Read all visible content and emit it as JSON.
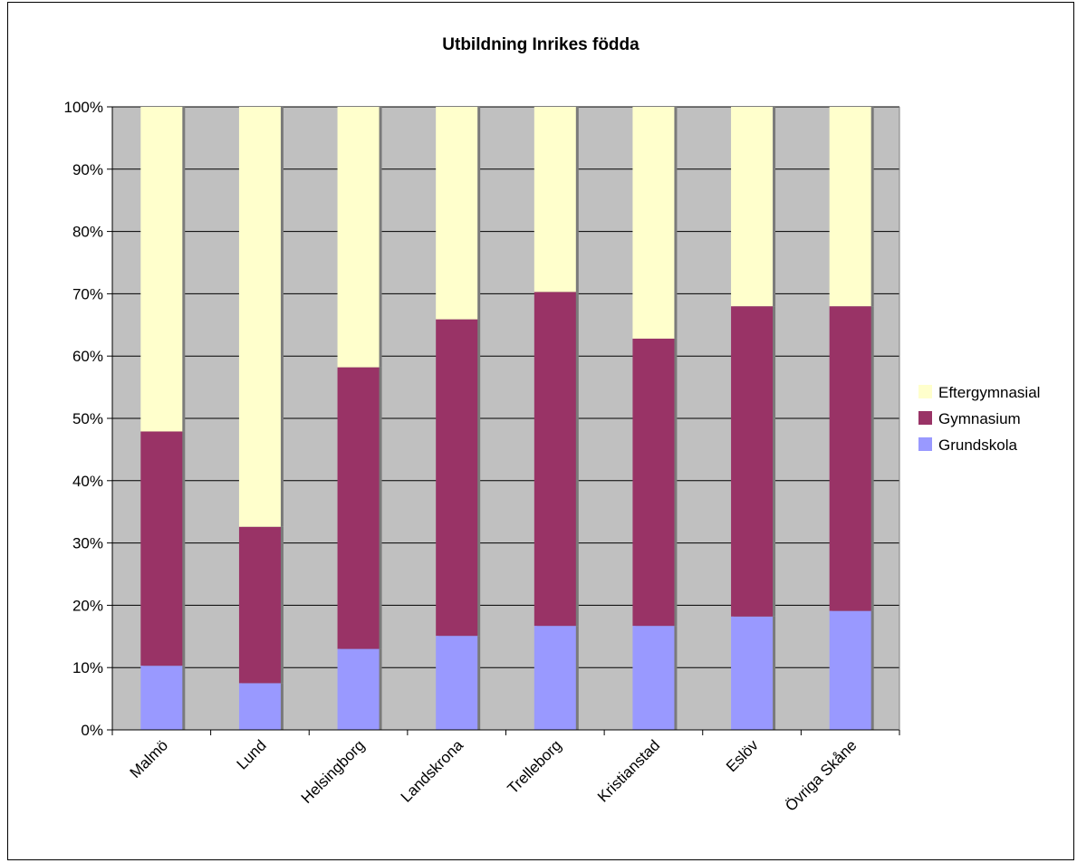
{
  "chart_data": {
    "type": "bar",
    "stacked": "percent",
    "title": "Utbildning Inrikes födda",
    "xlabel": "",
    "ylabel": "",
    "ylim": [
      0,
      100
    ],
    "yticks": [
      "0%",
      "10%",
      "20%",
      "30%",
      "40%",
      "50%",
      "60%",
      "70%",
      "80%",
      "90%",
      "100%"
    ],
    "grid": true,
    "legend_position": "right",
    "plot_background": "#c0c0c0",
    "categories": [
      "Malmö",
      "Lund",
      "Helsingborg",
      "Landskrona",
      "Trelleborg",
      "Kristianstad",
      "Eslöv",
      "Övriga Skåne"
    ],
    "series": [
      {
        "name": "Grundskola",
        "color": "#9999ff",
        "values": [
          10.3,
          7.5,
          13.0,
          15.1,
          16.7,
          16.7,
          18.2,
          19.1
        ]
      },
      {
        "name": "Gymnasium",
        "color": "#993366",
        "values": [
          37.6,
          25.1,
          45.2,
          50.8,
          53.6,
          46.1,
          49.8,
          48.9
        ]
      },
      {
        "name": "Eftergymnasial",
        "color": "#ffffcc",
        "values": [
          52.1,
          67.4,
          41.8,
          34.1,
          29.7,
          37.2,
          32.0,
          32.0
        ]
      }
    ],
    "legend_order": [
      "Eftergymnasial",
      "Gymnasium",
      "Grundskola"
    ]
  }
}
